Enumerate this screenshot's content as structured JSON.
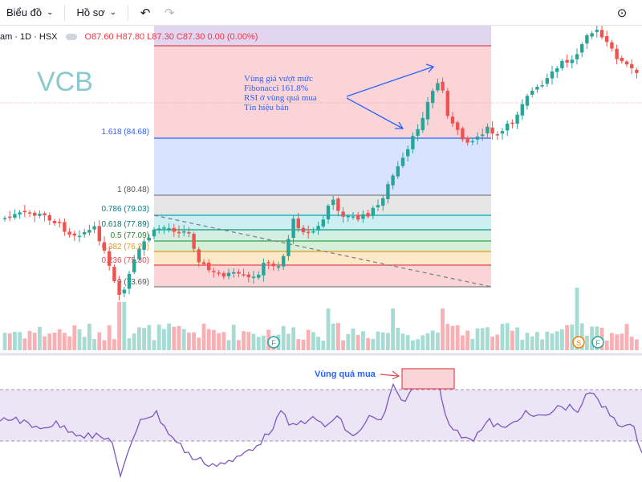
{
  "toolbar": {
    "chart_label": "Biểu đồ",
    "profile_label": "Hồ sơ",
    "undo_icon": "undo-icon",
    "redo_icon": "redo-icon",
    "snapshot_icon": "camera-icon"
  },
  "legend": {
    "symbol": "am · 1D · HSX",
    "ohlc": "O87.60  H87.80  L87.30  C87.30  0.00 (0.00%)"
  },
  "watermark": "VCB",
  "fib_labels": [
    "1.618 (84.68)",
    "1 (80.48)",
    "0.786 (79.03)",
    "0.618 (77.89)",
    "0.5 (77.09)",
    "0.382 (76.29)",
    "0.236 (75.30)",
    "0 (73.69)"
  ],
  "annotation": [
    "Vùng giá vượt mức",
    "Fibonacci 161.8%",
    "RSI ở vùng quá mua",
    "Tín hiệu bán"
  ],
  "rsi_label": "Vùng quá mua",
  "markers": [
    "F",
    "S",
    "F"
  ],
  "colors": {
    "up": "#26a69a",
    "down": "#ef5350",
    "accent": "#2962ff",
    "rsi": "#7e57c2"
  }
}
